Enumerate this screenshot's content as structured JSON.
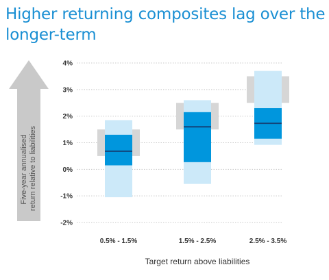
{
  "title": "Higher returning composites lag over the longer-term",
  "colors": {
    "title": "#1a8fd3",
    "light": "#cce9f9",
    "mid": "#0096dd",
    "median": "#12447a",
    "grey": "#d6d6d6",
    "grid": "#c8c8c8",
    "arrow": "#c9c9c9"
  },
  "chart_data": {
    "type": "boxplot",
    "ylim": [
      -2,
      4
    ],
    "yticks": [
      {
        "value": 4,
        "label": "4%"
      },
      {
        "value": 3,
        "label": "3%"
      },
      {
        "value": 2,
        "label": "2%"
      },
      {
        "value": 1,
        "label": "1%"
      },
      {
        "value": 0,
        "label": "0%"
      },
      {
        "value": -1,
        "label": "-1%"
      },
      {
        "value": -2,
        "label": "-2%"
      }
    ],
    "xlabel": "Target return above liabilities",
    "ylabel": "Five-year annualised  return relative to liabilities",
    "grid": true,
    "categories": [
      "0.5% - 1.5%",
      "1.5% - 2.5%",
      "2.5% - 3.5%"
    ],
    "boxes": [
      {
        "category": "0.5% - 1.5%",
        "grey_low": 0.5,
        "grey_high": 1.5,
        "outer_low": -1.05,
        "outer_high": 1.85,
        "inner_low": 0.15,
        "inner_high": 1.3,
        "median": 0.68
      },
      {
        "category": "1.5% - 2.5%",
        "grey_low": 1.5,
        "grey_high": 2.5,
        "outer_low": -0.55,
        "outer_high": 2.6,
        "inner_low": 0.27,
        "inner_high": 2.15,
        "median": 1.6
      },
      {
        "category": "2.5% - 3.5%",
        "grey_low": 2.5,
        "grey_high": 3.5,
        "outer_low": 0.92,
        "outer_high": 3.7,
        "inner_low": 1.15,
        "inner_high": 2.3,
        "median": 1.73
      }
    ]
  }
}
